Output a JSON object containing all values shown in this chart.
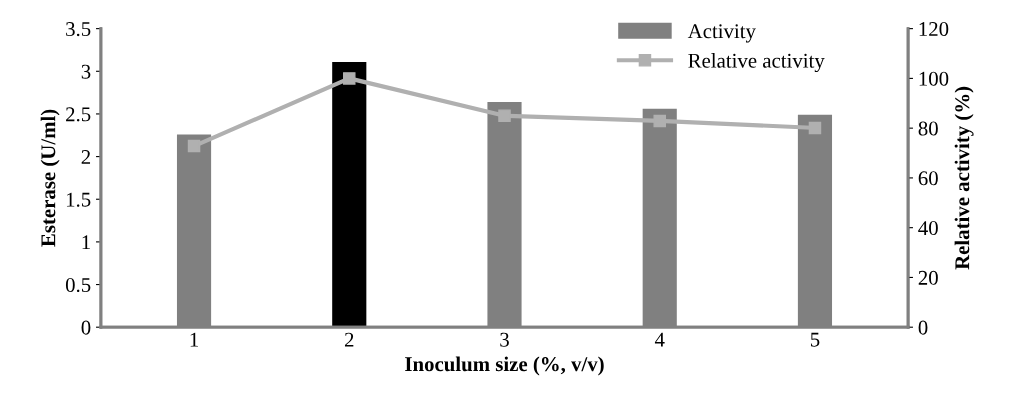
{
  "chart_data": {
    "type": "bar",
    "xlabel": "Inoculum size (%, v/v)",
    "ylabel": "Esterase (U/ml)",
    "y2label": "Relative activity (%)",
    "categories": [
      "1",
      "2",
      "3",
      "4",
      "5"
    ],
    "series": [
      {
        "name": "Activity",
        "color": "#808080",
        "colors": [
          "#808080",
          "#000000",
          "#808080",
          "#808080",
          "#808080"
        ],
        "values": [
          2.26,
          3.11,
          2.64,
          2.56,
          2.49
        ]
      },
      {
        "name": "Relative activity",
        "type": "line",
        "axis": "y2",
        "color": "#b0b0b0",
        "marker": "square",
        "values": [
          72.8,
          100,
          85,
          82.9,
          80.1
        ]
      }
    ],
    "ylim": [
      0,
      3.5
    ],
    "yticks": [
      0,
      0.5,
      1,
      1.5,
      2,
      2.5,
      3,
      3.5
    ],
    "y2lim": [
      0,
      120
    ],
    "y2ticks": [
      0,
      20,
      40,
      60,
      80,
      100,
      120
    ],
    "legend": "top right",
    "grid": false
  }
}
